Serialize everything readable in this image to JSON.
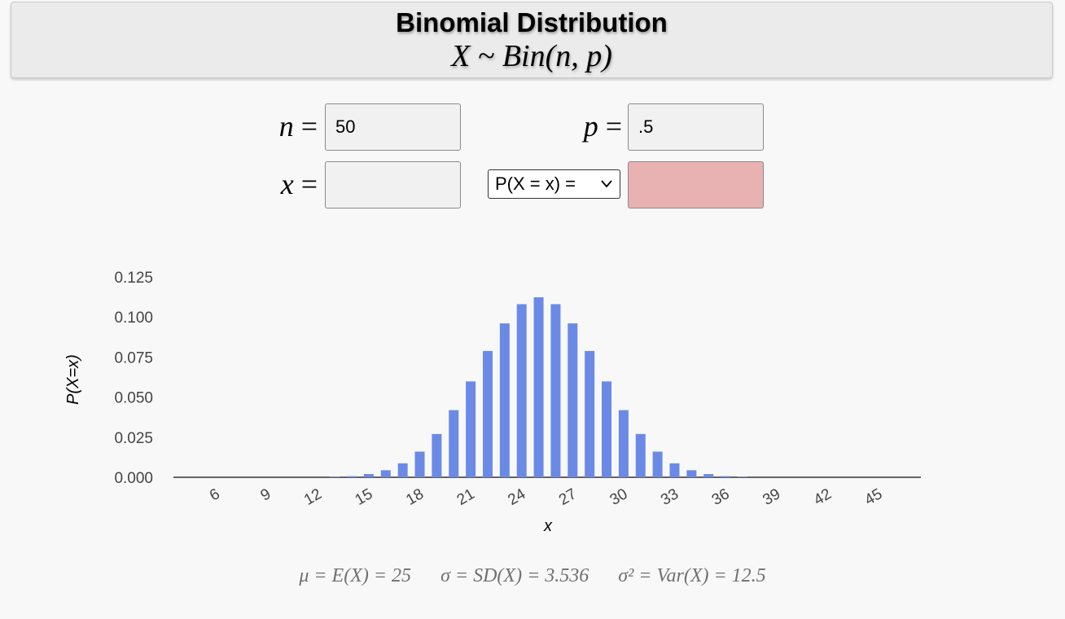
{
  "header": {
    "title": "Binomial Distribution",
    "subtitle": "X ~ Bin(n, p)"
  },
  "inputs": {
    "n_label": "n",
    "n_value": "50",
    "p_label": "p",
    "p_value": ".5",
    "x_label": "x",
    "x_value": "",
    "eq_sign": "=",
    "prob_select": "P(X = x)  =",
    "result_value": ""
  },
  "colors": {
    "bar": "#6a8ae6",
    "result_bg": "#e8b1b2"
  },
  "stats": {
    "mean": "μ = E(X) = 25",
    "sd": "σ = SD(X) = 3.536",
    "var": "σ² = Var(X) = 12.5"
  },
  "chart_data": {
    "type": "bar",
    "xlabel": "x",
    "ylabel": "P(X=x)",
    "ylim": [
      0,
      0.125
    ],
    "yticks": [
      "0.000",
      "0.025",
      "0.050",
      "0.075",
      "0.100",
      "0.125"
    ],
    "xticks": [
      6,
      9,
      12,
      15,
      18,
      21,
      24,
      27,
      30,
      33,
      36,
      39,
      42,
      45
    ],
    "xlim": [
      3.5,
      47.5
    ],
    "grid": false,
    "x": [
      13,
      14,
      15,
      16,
      17,
      18,
      19,
      20,
      21,
      22,
      23,
      24,
      25,
      26,
      27,
      28,
      29,
      30,
      31,
      32,
      33,
      34,
      35,
      36,
      37
    ],
    "values": [
      0.0003,
      0.0007,
      0.002,
      0.0044,
      0.0087,
      0.016,
      0.027,
      0.0419,
      0.0598,
      0.0788,
      0.096,
      0.108,
      0.1123,
      0.108,
      0.096,
      0.0788,
      0.0598,
      0.0419,
      0.027,
      0.016,
      0.0087,
      0.0044,
      0.002,
      0.0007,
      0.0003
    ]
  }
}
